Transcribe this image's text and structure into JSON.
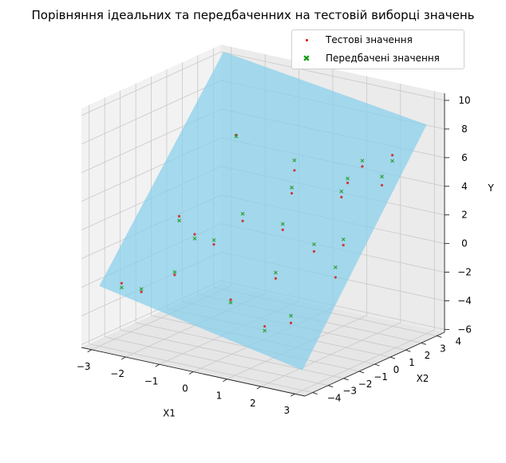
{
  "chart_data": {
    "type": "scatter3d",
    "title": "Порівняння ідеальних та передбаченних на тестовій виборці значень",
    "xlabel": "X1",
    "ylabel": "X2",
    "zlabel": "Y",
    "xlim": [
      -3.3,
      3.3
    ],
    "ylim": [
      -4.5,
      4.5
    ],
    "zlim": [
      -6.2,
      10.5
    ],
    "xticks": [
      "−3",
      "−2",
      "−1",
      "0",
      "1",
      "2",
      "3"
    ],
    "yticks": [
      "−4",
      "−3",
      "−2",
      "−1",
      "0",
      "1",
      "2",
      "3",
      "4"
    ],
    "zticks": [
      "−6",
      "−4",
      "−2",
      "0",
      "2",
      "4",
      "6",
      "8",
      "10"
    ],
    "grid": true,
    "legend_position": "top-right",
    "plane": {
      "label": "",
      "color": "#87ceeb",
      "corners": [
        {
          "x1": -3.0,
          "x2": -4.0,
          "y": -2.0
        },
        {
          "x1": 3.0,
          "x2": -4.0,
          "y": -4.8
        },
        {
          "x1": 3.0,
          "x2": 4.0,
          "y": 8.4
        },
        {
          "x1": -3.0,
          "x2": 4.0,
          "y": 10.4
        }
      ]
    },
    "series": [
      {
        "name": "Тестові значення",
        "marker": "dot",
        "color": "#e00000",
        "points": [
          [
            -2.8,
            -3.0,
            -2.2
          ],
          [
            -2.4,
            -2.6,
            -2.8
          ],
          [
            -1.6,
            -2.2,
            -1.4
          ],
          [
            0.1,
            -2.3,
            -2.2
          ],
          [
            1.7,
            -3.6,
            -2.6
          ],
          [
            2.2,
            -3.0,
            -2.4
          ],
          [
            2.6,
            -1.0,
            0.0
          ],
          [
            -1.1,
            -2.0,
            1.6
          ],
          [
            -0.9,
            -1.2,
            0.6
          ],
          [
            1.2,
            -1.8,
            -0.4
          ],
          [
            -2.2,
            -0.6,
            1.6
          ],
          [
            0.4,
            0.4,
            1.5
          ],
          [
            2.1,
            0.6,
            1.2
          ],
          [
            1.6,
            -0.2,
            0.9
          ],
          [
            -0.6,
            0.0,
            1.8
          ],
          [
            -1.8,
            2.2,
            6.1
          ],
          [
            1.4,
            2.0,
            3.5
          ],
          [
            2.0,
            3.3,
            4.0
          ],
          [
            0.3,
            1.2,
            3.6
          ],
          [
            -0.4,
            2.9,
            4.0
          ],
          [
            1.1,
            4.0,
            4.5
          ],
          [
            1.4,
            2.4,
            4.3
          ],
          [
            2.4,
            3.1,
            6.4
          ]
        ]
      },
      {
        "name": "Передбачені значення",
        "marker": "x",
        "color": "#1a9a1a",
        "points": [
          [
            -2.8,
            -3.0,
            -2.5
          ],
          [
            -2.4,
            -2.6,
            -2.6
          ],
          [
            -1.6,
            -2.2,
            -1.2
          ],
          [
            0.1,
            -2.3,
            -2.4
          ],
          [
            1.7,
            -3.6,
            -2.9
          ],
          [
            2.2,
            -3.0,
            -1.9
          ],
          [
            2.6,
            -1.0,
            0.7
          ],
          [
            -1.1,
            -2.0,
            1.3
          ],
          [
            -0.9,
            -1.2,
            0.9
          ],
          [
            1.2,
            -1.8,
            0.0
          ],
          [
            -2.2,
            -0.6,
            1.3
          ],
          [
            0.4,
            0.4,
            1.9
          ],
          [
            2.1,
            0.6,
            1.6
          ],
          [
            1.6,
            -0.2,
            1.4
          ],
          [
            -0.6,
            0.0,
            2.3
          ],
          [
            -1.8,
            2.2,
            6.0
          ],
          [
            1.4,
            2.0,
            3.9
          ],
          [
            2.0,
            3.3,
            4.6
          ],
          [
            0.3,
            1.2,
            4.0
          ],
          [
            -0.4,
            2.9,
            4.7
          ],
          [
            1.1,
            4.0,
            4.9
          ],
          [
            1.4,
            2.4,
            4.6
          ],
          [
            2.4,
            3.1,
            6.0
          ]
        ]
      }
    ]
  }
}
